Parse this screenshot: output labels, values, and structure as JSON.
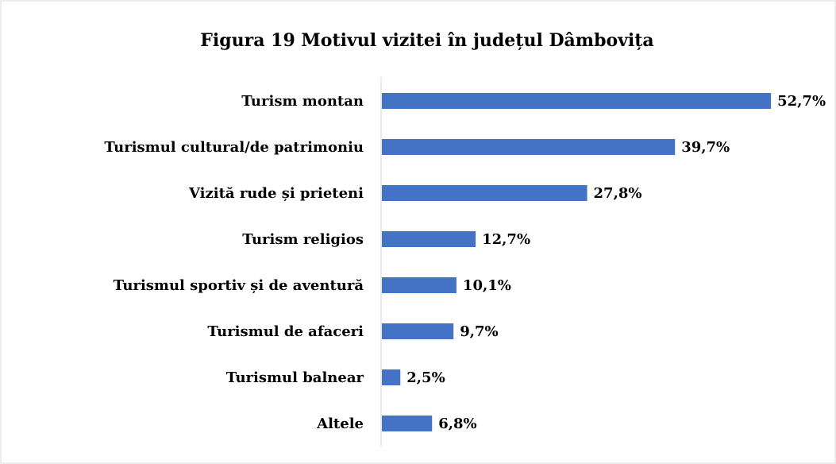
{
  "chart_data": {
    "type": "bar",
    "orientation": "horizontal",
    "title": "Figura 19 Motivul vizitei în județul Dâmbovița",
    "categories": [
      "Turism montan",
      "Turismul cultural/de patrimoniu",
      "Vizită rude și prieteni",
      "Turism religios",
      "Turismul sportiv și de aventură",
      "Turismul de afaceri",
      "Turismul balnear",
      "Altele"
    ],
    "values": [
      52.7,
      39.7,
      27.8,
      12.7,
      10.1,
      9.7,
      2.5,
      6.8
    ],
    "value_labels": [
      "52,7%",
      "39,7%",
      "27,8%",
      "12,7%",
      "10,1%",
      "9,7%",
      "2,5%",
      "6,8%"
    ],
    "color": "#4472c4"
  }
}
